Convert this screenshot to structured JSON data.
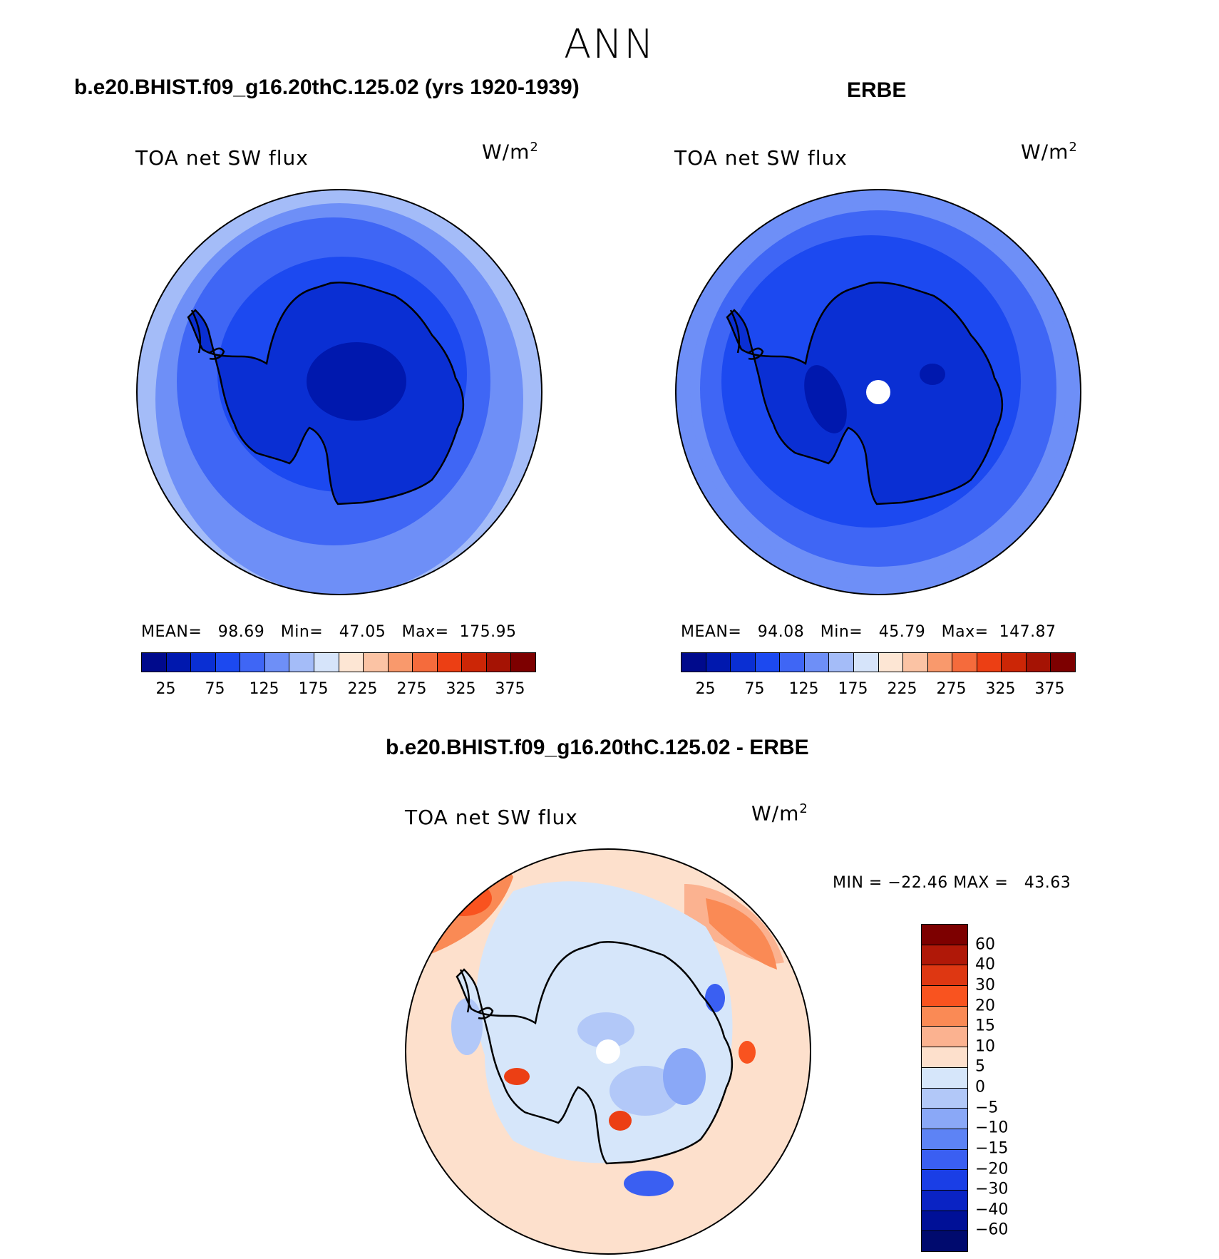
{
  "figure": {
    "season": "ANN",
    "var_label": "TOA net SW flux",
    "units": "W/m",
    "units_exp": "2"
  },
  "panels": {
    "model": {
      "title": "b.e20.BHIST.f09_g16.20thC.125.02 (yrs 1920-1939)",
      "stats": "MEAN=   98.69   Min=   47.05   Max=  175.95",
      "mean": 98.69,
      "min": 47.05,
      "max": 175.95
    },
    "obs": {
      "title": "ERBE",
      "stats": "MEAN=   94.08   Min=   45.79   Max=  147.87",
      "mean": 94.08,
      "min": 45.79,
      "max": 147.87
    },
    "diff": {
      "title": "b.e20.BHIST.f09_g16.20thC.125.02 - ERBE",
      "stats": "MIN = −22.46 MAX =   43.63",
      "min": -22.46,
      "max": 43.63
    }
  },
  "colorbar_top": {
    "tick_labels": [
      "25",
      "75",
      "125",
      "175",
      "225",
      "275",
      "325",
      "375"
    ],
    "colors": [
      "#000a8c",
      "#0018ae",
      "#0a2fd3",
      "#1c49f0",
      "#3f66f5",
      "#6e8ff7",
      "#a4bcf8",
      "#d6e4fa",
      "#fde6d4",
      "#fbc3a4",
      "#f9996c",
      "#f56b3c",
      "#ec3f14",
      "#cc2606",
      "#a51304",
      "#7d0000"
    ]
  },
  "colorbar_diff": {
    "labels": [
      "60",
      "40",
      "30",
      "20",
      "15",
      "10",
      "5",
      "0",
      "−5",
      "−10",
      "−15",
      "−20",
      "−30",
      "−40",
      "−60"
    ],
    "colors": [
      "#7d0000",
      "#b01808",
      "#de3712",
      "#f9531f",
      "#fa8a55",
      "#fbb290",
      "#fde0cc",
      "#d6e6fa",
      "#b2c8f8",
      "#8aa8f7",
      "#5d83f5",
      "#3a5ff2",
      "#1a3ee6",
      "#0a23c4",
      "#001097",
      "#000a6e"
    ]
  },
  "map_colors": {
    "land_outline": "#000000",
    "missing": "#ffffff"
  }
}
